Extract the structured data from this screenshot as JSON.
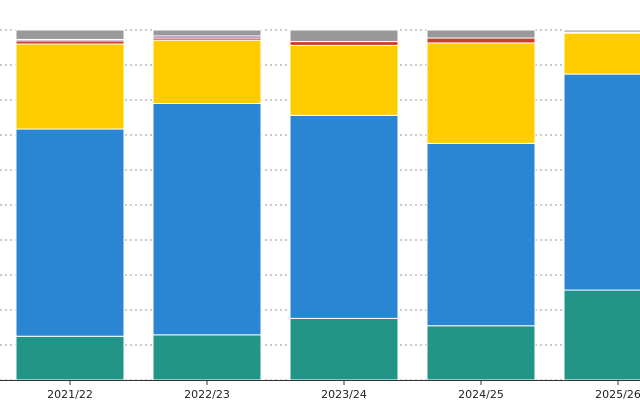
{
  "chart_data": {
    "type": "bar",
    "stacked": true,
    "normalized": true,
    "categories": [
      "2021/22",
      "2022/23",
      "2023/24",
      "2024/25",
      "2025/26"
    ],
    "ylim": [
      0,
      1
    ],
    "grid": true,
    "legend": "none",
    "series": [
      {
        "color": "#229488",
        "values": [
          0.125,
          0.129,
          0.176,
          0.155,
          0.257
        ]
      },
      {
        "color": "#2A86D3",
        "values": [
          0.592,
          0.661,
          0.58,
          0.521,
          0.617
        ]
      },
      {
        "color": "#FFCC00",
        "values": [
          0.243,
          0.181,
          0.2,
          0.287,
          0.117
        ]
      },
      {
        "color": "#CC3D2F",
        "values": [
          0.009,
          0.006,
          0.011,
          0.014,
          0.003
        ]
      },
      {
        "color": "#8E5BA6",
        "values": [
          0.004,
          0.006,
          0.0,
          0.0,
          0.0
        ]
      },
      {
        "color": "#999999",
        "values": [
          0.027,
          0.017,
          0.033,
          0.023,
          0.006
        ]
      }
    ]
  }
}
